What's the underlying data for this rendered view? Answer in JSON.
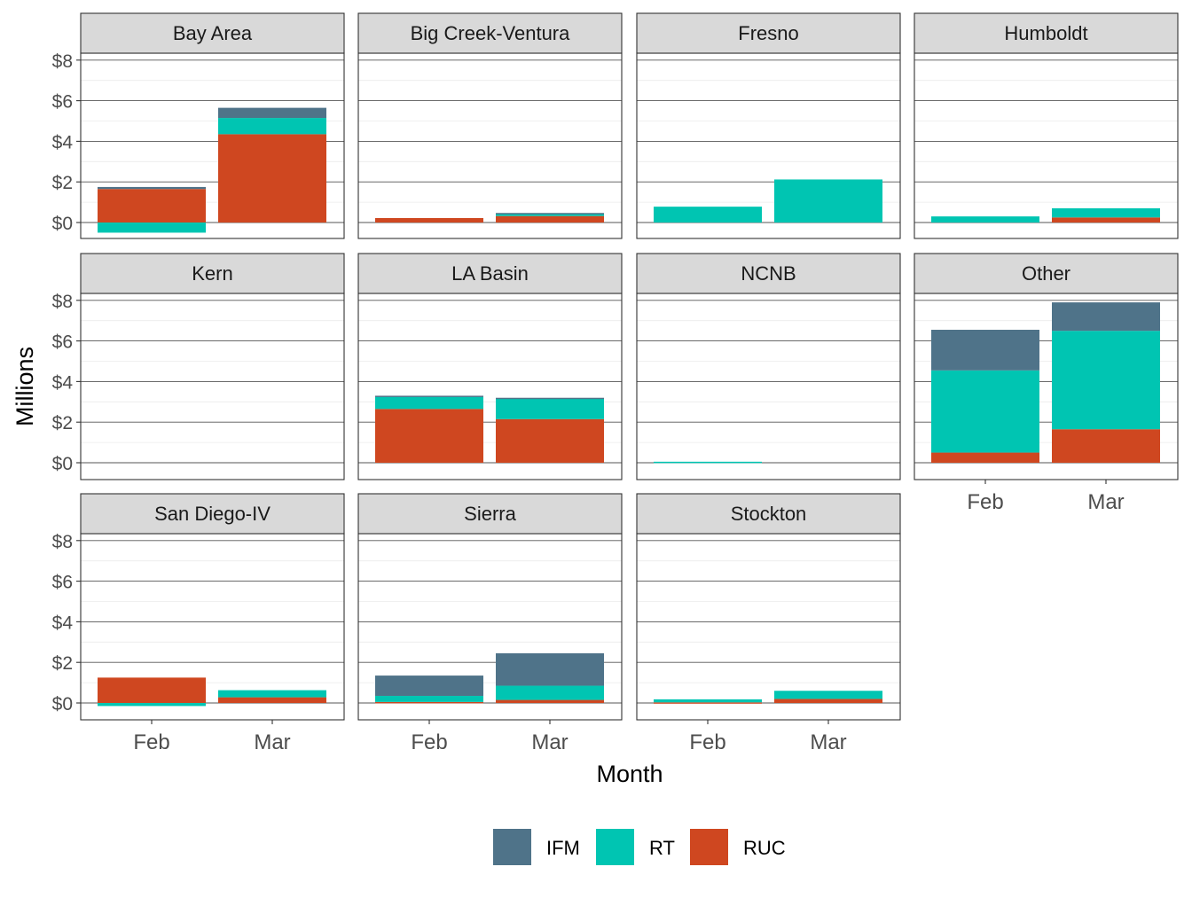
{
  "chart_data": {
    "type": "bar",
    "stacked": true,
    "faceted": true,
    "xlabel": "Month",
    "ylabel": "Millions",
    "ylim": [
      -0.8,
      8.5
    ],
    "yticks": [
      0,
      2,
      4,
      6,
      8
    ],
    "ytick_labels": [
      "$0",
      "$2",
      "$4",
      "$6",
      "$8"
    ],
    "categories": [
      "Feb",
      "Mar"
    ],
    "legend_position": "bottom",
    "series_meta": [
      {
        "name": "IFM",
        "color": "#4f7389"
      },
      {
        "name": "RT",
        "color": "#00c5b2"
      },
      {
        "name": "RUC",
        "color": "#cf4720"
      }
    ],
    "panels": [
      {
        "name": "Bay Area",
        "values": {
          "IFM": [
            0.1,
            0.5
          ],
          "RT": [
            -0.5,
            0.8
          ],
          "RUC": [
            1.65,
            4.35
          ]
        }
      },
      {
        "name": "Big Creek-Ventura",
        "values": {
          "IFM": [
            0.0,
            0.03
          ],
          "RT": [
            0.0,
            0.12
          ],
          "RUC": [
            0.22,
            0.32
          ]
        }
      },
      {
        "name": "Fresno",
        "values": {
          "IFM": [
            0.0,
            0.0
          ],
          "RT": [
            0.78,
            2.12
          ],
          "RUC": [
            0.0,
            0.0
          ]
        }
      },
      {
        "name": "Humboldt",
        "values": {
          "IFM": [
            0.0,
            0.0
          ],
          "RT": [
            0.3,
            0.45
          ],
          "RUC": [
            0.0,
            0.25
          ]
        }
      },
      {
        "name": "Kern",
        "values": {
          "IFM": [
            0.0,
            0.0
          ],
          "RT": [
            0.0,
            0.0
          ],
          "RUC": [
            0.0,
            0.0
          ]
        }
      },
      {
        "name": "LA Basin",
        "values": {
          "IFM": [
            0.05,
            0.05
          ],
          "RT": [
            0.6,
            1.0
          ],
          "RUC": [
            2.65,
            2.15
          ]
        }
      },
      {
        "name": "NCNB",
        "values": {
          "IFM": [
            0.0,
            0.0
          ],
          "RT": [
            0.05,
            0.0
          ],
          "RUC": [
            0.0,
            0.0
          ]
        }
      },
      {
        "name": "Other",
        "values": {
          "IFM": [
            2.0,
            1.4
          ],
          "RT": [
            4.05,
            4.85
          ],
          "RUC": [
            0.5,
            1.65
          ]
        }
      },
      {
        "name": "San Diego-IV",
        "values": {
          "IFM": [
            0.0,
            0.0
          ],
          "RT": [
            -0.15,
            0.35
          ],
          "RUC": [
            1.25,
            0.28
          ]
        }
      },
      {
        "name": "Sierra",
        "values": {
          "IFM": [
            1.0,
            1.6
          ],
          "RT": [
            0.3,
            0.7
          ],
          "RUC": [
            0.05,
            0.15
          ]
        }
      },
      {
        "name": "Stockton",
        "values": {
          "IFM": [
            0.0,
            0.0
          ],
          "RT": [
            0.15,
            0.4
          ],
          "RUC": [
            0.03,
            0.2
          ]
        }
      }
    ]
  }
}
